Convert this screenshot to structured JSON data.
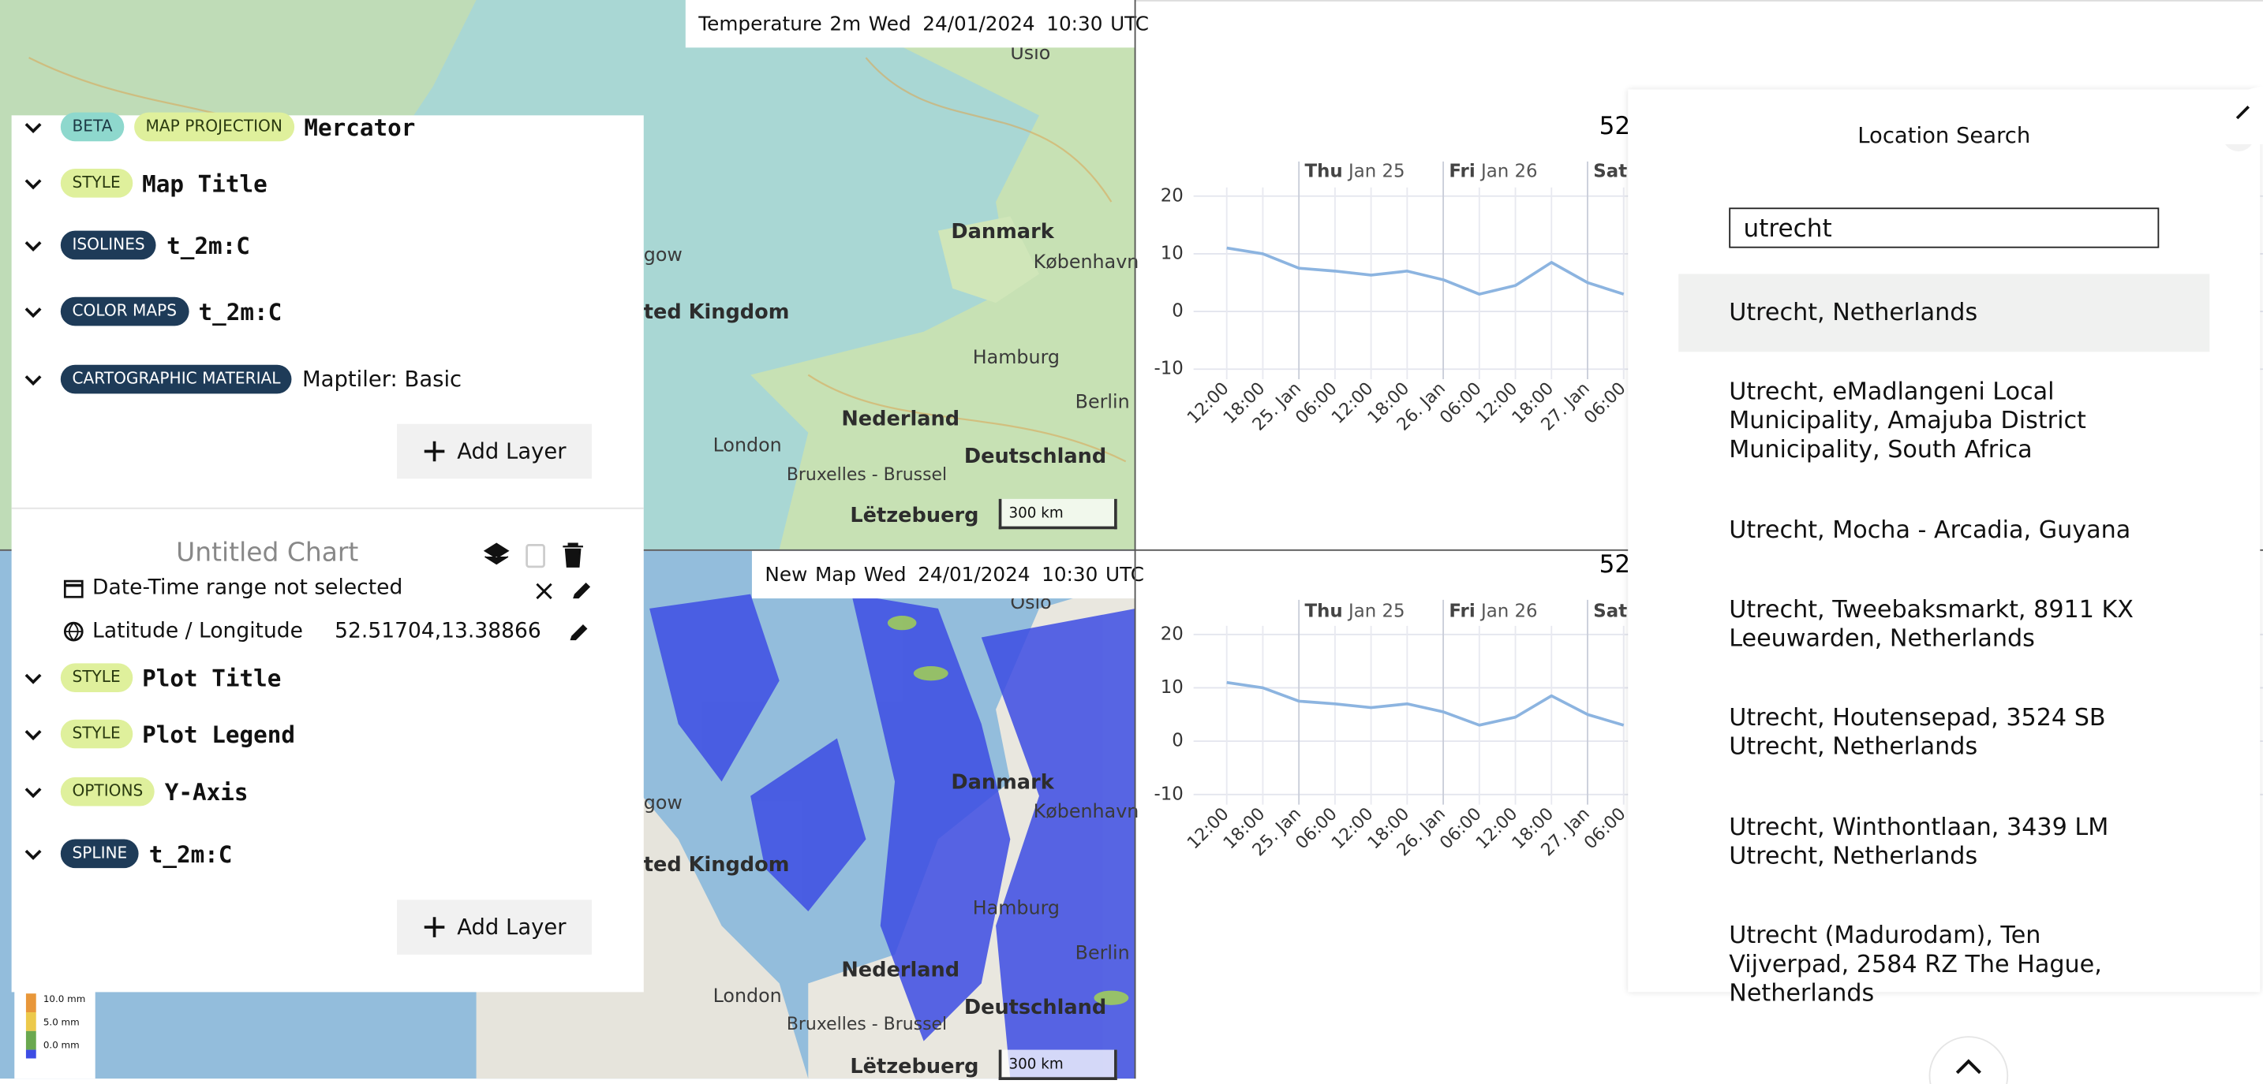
{
  "maps": [
    {
      "header": [
        "Temperature 2m Wed",
        "24/01/2024",
        "10:30 UTC"
      ],
      "labels": [
        "Usio",
        "Danmark",
        "København",
        "ted Kingdom",
        "Hamburg",
        "Berlin",
        "Nederland",
        "Deutschland",
        "London",
        "Bruxelles - Brussel",
        "Lëtzebuerg",
        "gow"
      ],
      "scale": "300 km"
    },
    {
      "header": [
        "New Map Wed",
        "24/01/2024",
        "10:30 UTC"
      ],
      "labels": [
        "Oslo",
        "Danmark",
        "København",
        "ted Kingdom",
        "Hamburg",
        "Berlin",
        "Nederland",
        "Deutschland",
        "London",
        "Bruxelles - Brussel",
        "Lëtzebuerg",
        "gow"
      ],
      "scale": "300 km",
      "legend": [
        "10.0 mm",
        "5.0 mm",
        "0.0 mm"
      ]
    }
  ],
  "map_layers": [
    {
      "badges": [
        "BETA",
        "MAP PROJECTION"
      ],
      "name": "Mercator"
    },
    {
      "badges": [
        "STYLE"
      ],
      "name": "Map Title"
    },
    {
      "badges": [
        "ISOLINES"
      ],
      "name": "t_2m:C"
    },
    {
      "badges": [
        "COLOR MAPS"
      ],
      "name": "t_2m:C"
    },
    {
      "badges": [
        "CARTOGRAPHIC MATERIAL"
      ],
      "name": "Maptiler: Basic"
    }
  ],
  "add_layer": "Add Layer",
  "chart_settings": {
    "title": "Untitled Chart",
    "date_time": "Date-Time range not selected",
    "location_label": "Latitude / Longitude",
    "location_value": "52.51704,13.38866",
    "layers": [
      {
        "badge": "STYLE",
        "name": "Plot Title"
      },
      {
        "badge": "STYLE",
        "name": "Plot Legend"
      },
      {
        "badge": "OPTIONS",
        "name": "Y-Axis"
      },
      {
        "badge": "SPLINE",
        "name": "t_2m:C"
      }
    ],
    "add_layer": "Add Layer"
  },
  "charts": [
    {
      "type": "line",
      "title": "52",
      "days": [
        {
          "weekday": "Thu",
          "date": "Jan 25"
        },
        {
          "weekday": "Fri",
          "date": "Jan 26"
        },
        {
          "weekday": "Sat"
        }
      ],
      "categories": [
        "12:00",
        "18:00",
        "25. Jan",
        "06:00",
        "12:00",
        "18:00",
        "26. Jan",
        "06:00",
        "12:00",
        "18:00",
        "27. Jan",
        "06:00"
      ],
      "series": [
        {
          "color": "#8cb4e0",
          "values": [
            11,
            10,
            7.5,
            7,
            6.3,
            7,
            5.5,
            3,
            4.5,
            8.5,
            5,
            3
          ]
        }
      ],
      "ylim": [
        -10,
        20
      ],
      "yticks": [
        -10,
        0,
        10,
        20
      ],
      "grid": true
    },
    {
      "type": "line",
      "title": "52",
      "days": [
        {
          "weekday": "Thu",
          "date": "Jan 25"
        },
        {
          "weekday": "Fri",
          "date": "Jan 26"
        },
        {
          "weekday": "Sat"
        }
      ],
      "categories": [
        "12:00",
        "18:00",
        "25. Jan",
        "06:00",
        "12:00",
        "18:00",
        "26. Jan",
        "06:00",
        "12:00",
        "18:00",
        "27. Jan",
        "06:00"
      ],
      "series": [
        {
          "color": "#8cb4e0",
          "values": [
            11,
            10,
            7.5,
            7,
            6.3,
            7,
            5.5,
            3,
            4.5,
            8.5,
            5,
            3
          ]
        }
      ],
      "ylim": [
        -10,
        20
      ],
      "yticks": [
        -10,
        0,
        10,
        20
      ],
      "grid": true
    }
  ],
  "location_search": {
    "title": "Location Search",
    "query": "utrecht",
    "results": [
      "Utrecht, Netherlands",
      "Utrecht, eMadlangeni Local Municipality, Amajuba District Municipality, South Africa",
      "Utrecht, Mocha - Arcadia, Guyana",
      "Utrecht, Tweebaksmarkt, 8911 KX Leeuwarden, Netherlands",
      "Utrecht, Houtensepad, 3524 SB Utrecht, Netherlands",
      "Utrecht, Winthontlaan, 3439 LM Utrecht, Netherlands",
      "Utrecht (Madurodam), Ten Vijverpad, 2584 RZ The Hague, Netherlands"
    ]
  }
}
